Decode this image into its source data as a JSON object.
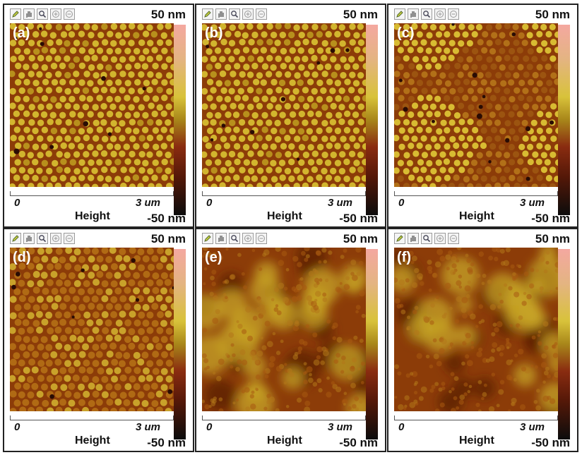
{
  "toolbar_icons": [
    "pencil-icon",
    "hand-icon",
    "magnify-icon",
    "zoom-in-icon",
    "zoom-out-icon"
  ],
  "colormap": [
    "#0c0c0c",
    "#541808",
    "#8a2c10",
    "#a8861a",
    "#d8c23a",
    "#e4b482",
    "#f4a8a0"
  ],
  "panels": [
    {
      "letter": "(a)",
      "max_label": "50 nm",
      "min_label": "-50 nm",
      "axis_start": "0",
      "axis_end": "3 um",
      "channel": "Height",
      "texture": "dots-bright"
    },
    {
      "letter": "(b)",
      "max_label": "50 nm",
      "min_label": "-50 nm",
      "axis_start": "0",
      "axis_end": "3 um",
      "channel": "Height",
      "texture": "dots-bright"
    },
    {
      "letter": "(c)",
      "max_label": "50 nm",
      "min_label": "-50 nm",
      "axis_start": "0",
      "axis_end": "3 um",
      "channel": "Height",
      "texture": "dots-patchy"
    },
    {
      "letter": "(d)",
      "max_label": "50 nm",
      "min_label": "-50 nm",
      "axis_start": "0",
      "axis_end": "3 um",
      "channel": "Height",
      "texture": "dots-dim"
    },
    {
      "letter": "(e)",
      "max_label": "50 nm",
      "min_label": "-50 nm",
      "axis_start": "0",
      "axis_end": "3 um",
      "channel": "Height",
      "texture": "blotchy"
    },
    {
      "letter": "(f)",
      "max_label": "50 nm",
      "min_label": "-50 nm",
      "axis_start": "0",
      "axis_end": "3 um",
      "channel": "Height",
      "texture": "blotchy"
    }
  ]
}
